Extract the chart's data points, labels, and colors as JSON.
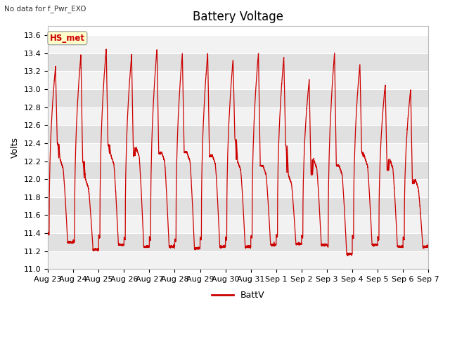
{
  "title": "Battery Voltage",
  "top_left_text": "No data for f_Pwr_EXO",
  "ylabel": "Volts",
  "legend_label": "BattV",
  "line_color": "#cc0000",
  "ylim": [
    11.0,
    13.7
  ],
  "yticks": [
    11.0,
    11.2,
    11.4,
    11.6,
    11.8,
    12.0,
    12.2,
    12.4,
    12.6,
    12.8,
    13.0,
    13.2,
    13.4,
    13.6
  ],
  "xtick_labels": [
    "Aug 23",
    "Aug 24",
    "Aug 25",
    "Aug 26",
    "Aug 27",
    "Aug 28",
    "Aug 29",
    "Aug 30",
    "Aug 31",
    "Sep 1",
    "Sep 2",
    "Sep 3",
    "Sep 4",
    "Sep 5",
    "Sep 6",
    "Sep 7"
  ],
  "box_label": "HS_met",
  "box_facecolor": "#ffffcc",
  "box_edgecolor": "#aaaaaa",
  "box_textcolor": "#cc0000",
  "fig_facecolor": "#ffffff",
  "plot_bg_color": "#e8e8e8",
  "band_color_light": "#f2f2f2",
  "band_color_dark": "#e0e0e0",
  "title_fontsize": 12,
  "tick_fontsize": 8,
  "ylabel_fontsize": 9,
  "n_days": 16,
  "day_peaks": [
    13.25,
    13.38,
    13.45,
    13.38,
    13.45,
    13.4,
    13.4,
    13.33,
    13.4,
    13.35,
    13.1,
    13.4,
    13.28,
    13.05,
    13.0,
    12.97
  ],
  "day_troughs": [
    11.3,
    11.22,
    11.27,
    11.25,
    11.25,
    11.23,
    11.25,
    11.25,
    11.27,
    11.28,
    11.27,
    11.17,
    11.27,
    11.25,
    11.25,
    11.18
  ],
  "mid_vals": [
    12.22,
    12.0,
    12.27,
    12.35,
    12.3,
    12.3,
    12.27,
    12.2,
    12.15,
    12.05,
    12.22,
    12.15,
    12.25,
    12.22,
    12.0,
    11.85
  ],
  "sec_peaks": [
    12.4,
    12.2,
    12.38,
    12.25,
    12.28,
    12.3,
    12.25,
    12.45,
    12.15,
    12.38,
    12.05,
    12.15,
    12.3,
    12.1,
    11.95,
    11.8
  ]
}
